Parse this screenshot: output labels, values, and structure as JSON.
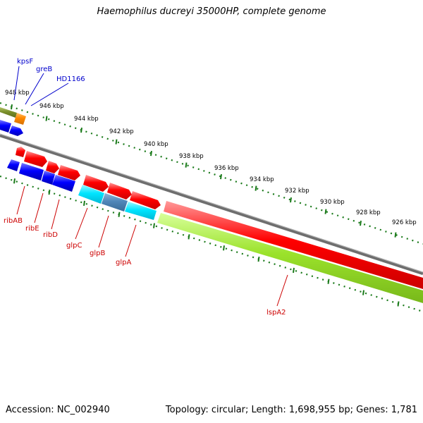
{
  "title": "Haemophilus ducreyi 35000HP, complete genome",
  "footer": {
    "accession": "Accession: NC_002940",
    "summary": "Topology: circular; Length: 1,698,955 bp; Genes: 1,781"
  },
  "scale_labels": [
    "948 kbp",
    "946 kbp",
    "944 kbp",
    "942 kbp",
    "940 kbp",
    "938 kbp",
    "936 kbp",
    "934 kbp",
    "932 kbp",
    "930 kbp",
    "928 kbp",
    "926 kbp"
  ],
  "gene_labels_top": [
    "kpsF",
    "greB",
    "HD1166"
  ],
  "gene_labels_bottom": [
    "ribAB",
    "ribE",
    "ribD",
    "glpC",
    "glpB",
    "glpA",
    "lspA2"
  ],
  "colors": {
    "forward_gene": "#ff0000",
    "reverse_gene": "#0000ff",
    "glp_cyan": "#00e5ff",
    "glp_steel": "#4f86b8",
    "lsp_green": "#9be22b",
    "olive": "#7a8f2a",
    "orange": "#ff8800",
    "backbone": "#808080",
    "ticks": "#1a7a1a",
    "label_blue": "#0000cc",
    "label_red": "#cc0000"
  }
}
